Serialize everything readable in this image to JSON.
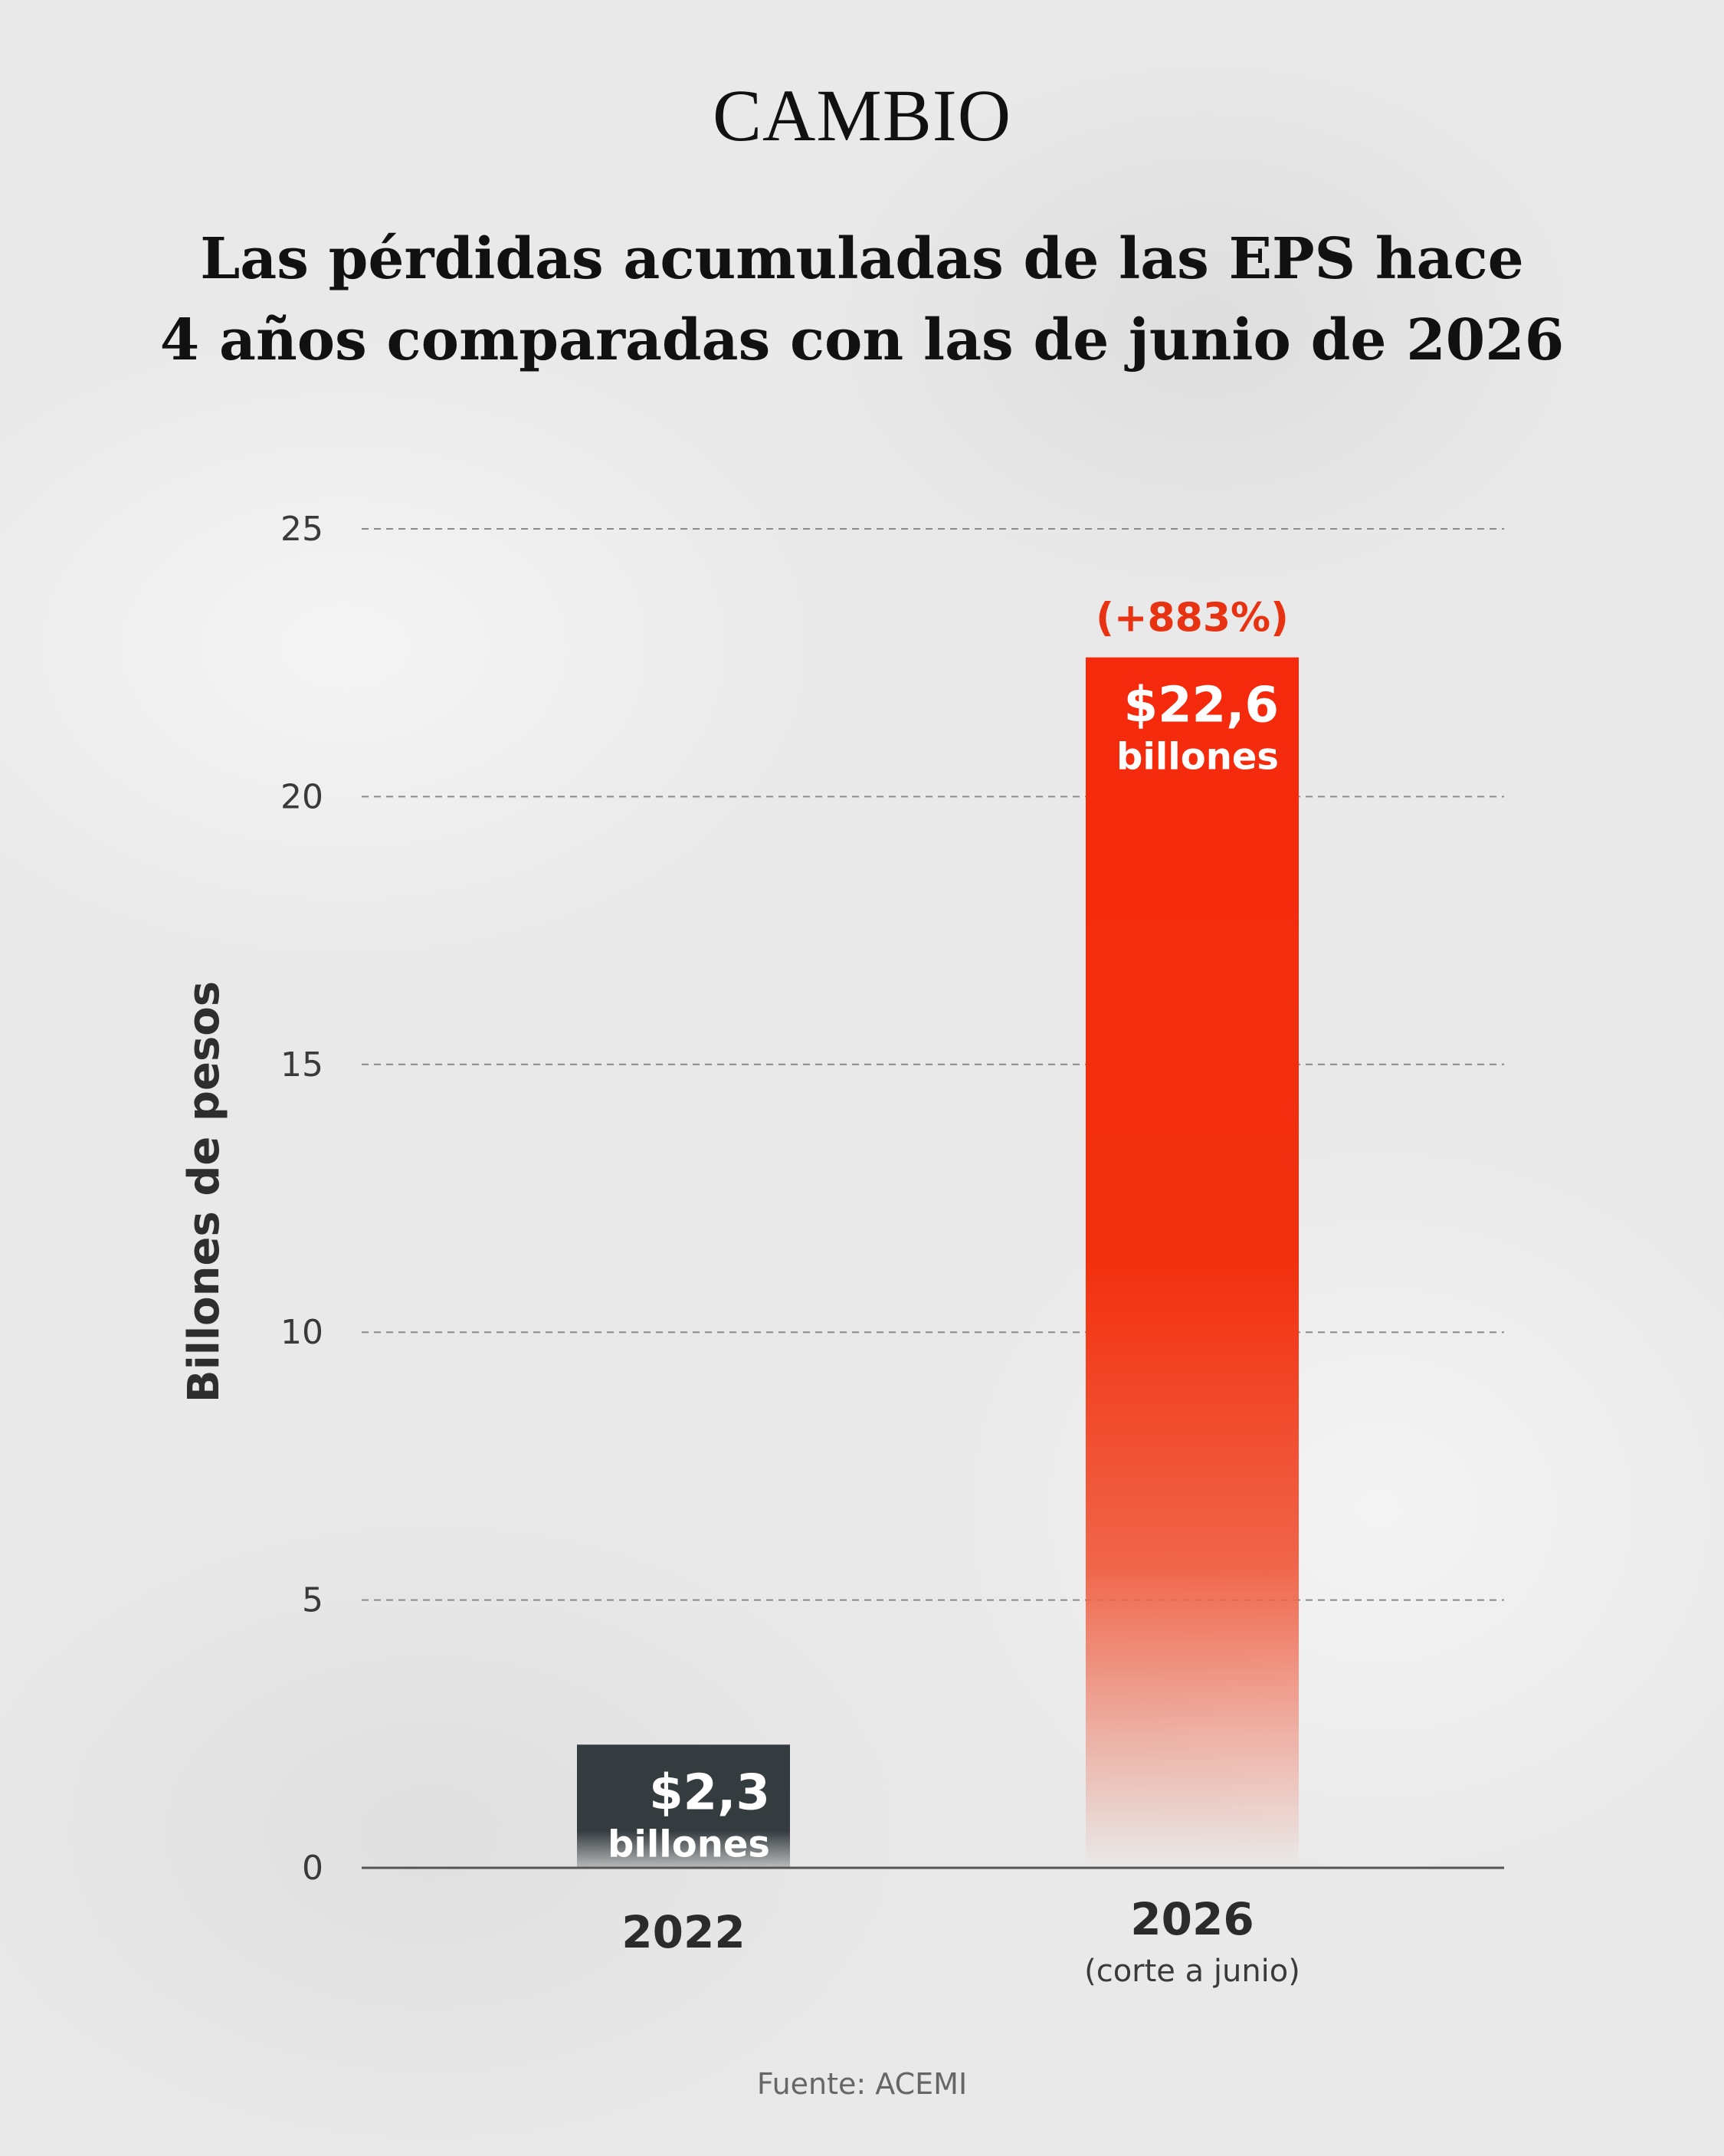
{
  "brand": "CAMBIO",
  "title_lines": [
    "Las pérdidas acumuladas de las EPS hace",
    "4 años comparadas con las de junio de 2026"
  ],
  "source": "Fuente: ACEMI",
  "colors": {
    "bar_2022": "#353c40",
    "bar_2026": "#f52a0c",
    "annotation": "#e83312",
    "axis": "#555555",
    "grid": "#8a8a8a"
  },
  "chart_data": {
    "type": "bar",
    "title": "",
    "ylabel": "Billones de pesos",
    "ylim": [
      0,
      25
    ],
    "yticks": [
      "0",
      "5",
      "10",
      "15",
      "20",
      "25"
    ],
    "grid": "horizontal-dashed",
    "categories": [
      "2022",
      "2026"
    ],
    "category_sublabels": [
      "",
      "(corte a junio)"
    ],
    "values": [
      2.3,
      22.6
    ],
    "value_labels": [
      "$2,3",
      "$22,6"
    ],
    "value_units": [
      "billones",
      "billones"
    ],
    "annotations": [
      "",
      "(+883%)"
    ]
  }
}
